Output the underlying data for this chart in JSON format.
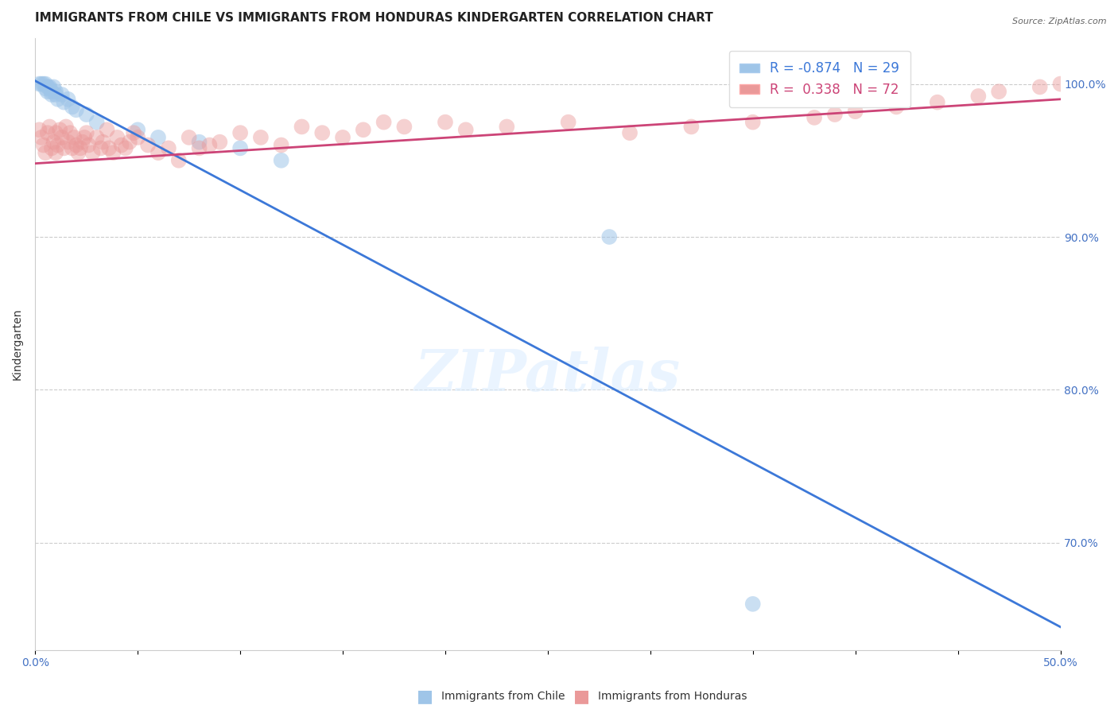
{
  "title": "IMMIGRANTS FROM CHILE VS IMMIGRANTS FROM HONDURAS KINDERGARTEN CORRELATION CHART",
  "source": "Source: ZipAtlas.com",
  "ylabel": "Kindergarten",
  "xlim": [
    0.0,
    0.5
  ],
  "ylim": [
    0.63,
    1.03
  ],
  "chile_color": "#9fc5e8",
  "honduras_color": "#ea9999",
  "chile_line_color": "#3c78d8",
  "honduras_line_color": "#cc4477",
  "R_chile": -0.874,
  "N_chile": 29,
  "R_honduras": 0.338,
  "N_honduras": 72,
  "chile_points_x": [
    0.002,
    0.003,
    0.004,
    0.005,
    0.005,
    0.006,
    0.006,
    0.007,
    0.007,
    0.008,
    0.008,
    0.009,
    0.01,
    0.01,
    0.011,
    0.013,
    0.014,
    0.016,
    0.018,
    0.02,
    0.025,
    0.03,
    0.05,
    0.06,
    0.08,
    0.1,
    0.12,
    0.28,
    0.35
  ],
  "chile_points_y": [
    1.0,
    1.0,
    1.0,
    1.0,
    0.997,
    0.998,
    0.995,
    0.997,
    0.998,
    0.993,
    0.995,
    0.998,
    0.993,
    0.995,
    0.99,
    0.993,
    0.988,
    0.99,
    0.985,
    0.983,
    0.98,
    0.975,
    0.97,
    0.965,
    0.962,
    0.958,
    0.95,
    0.9,
    0.66
  ],
  "honduras_points_x": [
    0.002,
    0.003,
    0.004,
    0.005,
    0.006,
    0.007,
    0.008,
    0.009,
    0.01,
    0.01,
    0.011,
    0.012,
    0.013,
    0.014,
    0.015,
    0.016,
    0.017,
    0.018,
    0.019,
    0.02,
    0.021,
    0.022,
    0.023,
    0.024,
    0.025,
    0.026,
    0.028,
    0.03,
    0.032,
    0.033,
    0.035,
    0.036,
    0.038,
    0.04,
    0.042,
    0.044,
    0.046,
    0.048,
    0.05,
    0.055,
    0.06,
    0.065,
    0.07,
    0.075,
    0.08,
    0.085,
    0.09,
    0.1,
    0.11,
    0.12,
    0.13,
    0.14,
    0.15,
    0.16,
    0.17,
    0.18,
    0.2,
    0.21,
    0.23,
    0.26,
    0.29,
    0.32,
    0.35,
    0.38,
    0.39,
    0.4,
    0.42,
    0.44,
    0.46,
    0.47,
    0.49,
    0.5
  ],
  "honduras_points_y": [
    0.97,
    0.965,
    0.96,
    0.955,
    0.968,
    0.972,
    0.958,
    0.962,
    0.968,
    0.955,
    0.96,
    0.97,
    0.965,
    0.958,
    0.972,
    0.962,
    0.968,
    0.958,
    0.965,
    0.96,
    0.955,
    0.958,
    0.962,
    0.965,
    0.968,
    0.96,
    0.955,
    0.965,
    0.958,
    0.962,
    0.97,
    0.958,
    0.955,
    0.965,
    0.96,
    0.958,
    0.962,
    0.968,
    0.965,
    0.96,
    0.955,
    0.958,
    0.95,
    0.965,
    0.958,
    0.96,
    0.962,
    0.968,
    0.965,
    0.96,
    0.972,
    0.968,
    0.965,
    0.97,
    0.975,
    0.972,
    0.975,
    0.97,
    0.972,
    0.975,
    0.968,
    0.972,
    0.975,
    0.978,
    0.98,
    0.982,
    0.985,
    0.988,
    0.992,
    0.995,
    0.998,
    1.0
  ],
  "watermark_text": "ZIPatlas",
  "background_color": "#ffffff",
  "grid_color": "#cccccc",
  "title_fontsize": 11,
  "axis_label_fontsize": 10,
  "tick_fontsize": 10,
  "legend_fontsize": 12
}
